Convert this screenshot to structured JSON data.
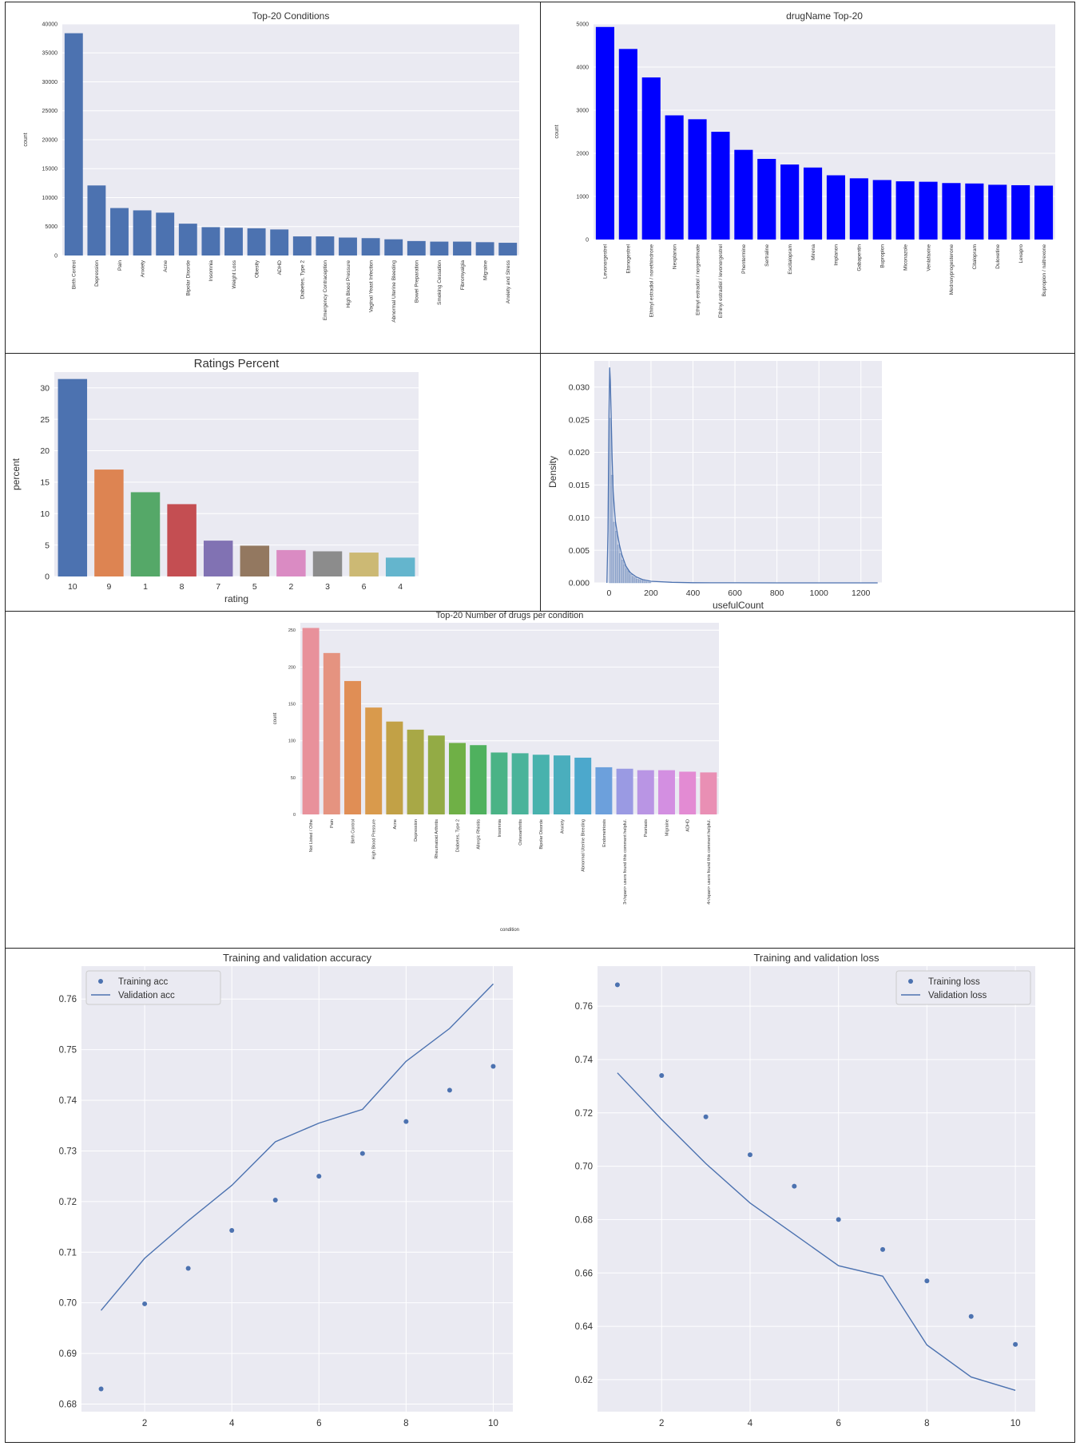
{
  "style": {
    "panel_bg": "#eaeaf2",
    "grid": "#ffffff",
    "text": "#333333"
  },
  "chart_data": [
    {
      "id": "top20_conditions",
      "type": "bar",
      "title": "Top-20 Conditions",
      "xlabel": "",
      "ylabel": "count",
      "ylim": [
        0,
        40000
      ],
      "yticks": [
        0,
        5000,
        10000,
        15000,
        20000,
        25000,
        30000,
        35000,
        40000
      ],
      "color": "#4c72b0",
      "categories": [
        "Birth Control",
        "Depression",
        "Pain",
        "Anxiety",
        "Acne",
        "Bipolar Disorde",
        "Insomnia",
        "Weight Loss",
        "Obesity",
        "ADHD",
        "Diabetes, Type 2",
        "Emergency Contraception",
        "High Blood Pressure",
        "Vaginal Yeast Infection",
        "Abnormal Uterine Bleeding",
        "Bowel Preparation",
        "Smoking Cessation",
        "Fibromyalgia",
        "Migraine",
        "Anxiety and Stress"
      ],
      "values": [
        38400,
        12100,
        8200,
        7800,
        7400,
        5500,
        4900,
        4800,
        4700,
        4500,
        3300,
        3300,
        3100,
        3000,
        2800,
        2500,
        2400,
        2400,
        2300,
        2200
      ]
    },
    {
      "id": "drugname_top20",
      "type": "bar",
      "title": "drugName Top-20",
      "xlabel": "",
      "ylabel": "count",
      "ylim": [
        0,
        5000
      ],
      "yticks": [
        0,
        1000,
        2000,
        3000,
        4000,
        5000
      ],
      "color": "#0000ff",
      "categories": [
        "Levonorgestrel",
        "Etonogestrel",
        "Ethinyl estradiol / norethindrone",
        "Nexplanon",
        "Ethinyl estradiol / norgestimate",
        "Ethinyl estradiol / levonorgestrel",
        "Phentermine",
        "Sertraline",
        "Escitalopram",
        "Mirena",
        "Implanon",
        "Gabapentin",
        "Bupropion",
        "Miconazole",
        "Venlafaxine",
        "Medroxyprogesterone",
        "Citalopram",
        "Duloxetine",
        "Lexapro",
        "Bupropion / naltrexone"
      ],
      "values": [
        4930,
        4420,
        3760,
        2880,
        2790,
        2500,
        2080,
        1870,
        1740,
        1670,
        1490,
        1420,
        1380,
        1350,
        1340,
        1310,
        1300,
        1270,
        1260,
        1250
      ]
    },
    {
      "id": "ratings_percent",
      "type": "bar",
      "title": "Ratings Percent",
      "xlabel": "rating",
      "ylabel": "percent",
      "ylim": [
        0,
        32.5
      ],
      "yticks": [
        0,
        5,
        10,
        15,
        20,
        25,
        30
      ],
      "categories": [
        "10",
        "9",
        "1",
        "8",
        "7",
        "5",
        "2",
        "3",
        "6",
        "4"
      ],
      "values": [
        31.4,
        17.0,
        13.4,
        11.5,
        5.7,
        4.9,
        4.2,
        4.0,
        3.8,
        3.0
      ],
      "colors": [
        "#4c72b0",
        "#dd8452",
        "#55a868",
        "#c44e52",
        "#8172b3",
        "#937860",
        "#da8bc3",
        "#8c8c8c",
        "#ccb974",
        "#64b5cd"
      ]
    },
    {
      "id": "usefulcount_density",
      "type": "area",
      "title": "",
      "xlabel": "usefulCount",
      "ylabel": "Density",
      "xlim": [
        -70,
        1300
      ],
      "ylim": [
        0,
        0.034
      ],
      "xticks": [
        0,
        200,
        400,
        600,
        800,
        1000,
        1200
      ],
      "yticks": [
        0.0,
        0.005,
        0.01,
        0.015,
        0.02,
        0.025,
        0.03
      ],
      "ytick_labels": [
        "0.000",
        "0.005",
        "0.010",
        "0.015",
        "0.020",
        "0.025",
        "0.030"
      ],
      "kde_x": [
        -10,
        -5,
        0,
        3,
        6,
        10,
        15,
        20,
        30,
        40,
        50,
        60,
        80,
        100,
        130,
        160,
        200,
        300,
        400,
        600,
        800,
        1000,
        1200,
        1280
      ],
      "kde_y": [
        0.0,
        0.008,
        0.026,
        0.033,
        0.031,
        0.026,
        0.019,
        0.014,
        0.0095,
        0.0075,
        0.0058,
        0.0044,
        0.0026,
        0.0016,
        0.0009,
        0.0005,
        0.00025,
        8e-05,
        3e-05,
        1e-05,
        0.0,
        0.0,
        0.0,
        0.0
      ],
      "hist_bin_width": 10,
      "hist_values": [
        0.0252,
        0.0165,
        0.0093,
        0.0079,
        0.0058,
        0.0045,
        0.0035,
        0.0028,
        0.0022,
        0.0018,
        0.0013,
        0.001,
        0.0008,
        0.0006,
        0.0005,
        0.0004,
        0.0003,
        0.0002,
        0.00015,
        0.0001
      ]
    },
    {
      "id": "drugs_per_condition",
      "type": "bar",
      "title": "Top-20 Number of drugs per condition",
      "xlabel": "condition",
      "ylabel": "count",
      "ylim": [
        0,
        260
      ],
      "yticks": [
        0,
        50,
        100,
        150,
        200,
        250
      ],
      "categories": [
        "Not Listed / Othe",
        "Pain",
        "Birth Control",
        "High Blood Pressure",
        "Acne",
        "Depression",
        "Rheumatoid Arthritis",
        "Diabetes, Type 2",
        "Allergic Rhinitis",
        "Insomnia",
        "Osteoarthritis",
        "Bipolar Disorde",
        "Anxiety",
        "Abnormal Uterine Bleeding",
        "Endometriosis",
        "3</span> users found this comment helpful.",
        "Psoriasis",
        "Migraine",
        "ADHD",
        "4</span> users found this comment helpful."
      ],
      "values": [
        253,
        219,
        181,
        145,
        126,
        115,
        107,
        97,
        94,
        84,
        83,
        81,
        80,
        77,
        64,
        62,
        60,
        60,
        58,
        57
      ],
      "colors": [
        "#e8919b",
        "#e59380",
        "#e08e55",
        "#d99a4c",
        "#c2a146",
        "#a8a846",
        "#93ab45",
        "#6fb046",
        "#4fb15e",
        "#4ab386",
        "#4ab39a",
        "#48b2ad",
        "#4aaebd",
        "#4ca8cc",
        "#6ca0dc",
        "#9a9ae3",
        "#b995e4",
        "#d38fe1",
        "#e38bd3",
        "#e98fb4"
      ]
    },
    {
      "id": "training_validation_accuracy",
      "type": "line",
      "title": "Training and validation accuracy",
      "xlabel": "",
      "ylabel": "",
      "xlim": [
        0.55,
        10.45
      ],
      "ylim": [
        0.6785,
        0.7665
      ],
      "xticks": [
        2,
        4,
        6,
        8,
        10
      ],
      "yticks": [
        0.68,
        0.69,
        0.7,
        0.71,
        0.72,
        0.73,
        0.74,
        0.75,
        0.76
      ],
      "ytick_labels": [
        "0.68",
        "0.69",
        "0.70",
        "0.71",
        "0.72",
        "0.73",
        "0.74",
        "0.75",
        "0.76"
      ],
      "legend": "top-left",
      "x": [
        1,
        2,
        3,
        4,
        5,
        6,
        7,
        8,
        9,
        10
      ],
      "series": [
        {
          "name": "Training acc",
          "style": "points",
          "values": [
            0.683,
            0.6998,
            0.7068,
            0.7143,
            0.7203,
            0.725,
            0.7295,
            0.7358,
            0.742,
            0.7467
          ]
        },
        {
          "name": "Validation acc",
          "style": "line",
          "values": [
            0.6985,
            0.7088,
            0.7162,
            0.7232,
            0.7318,
            0.7355,
            0.7382,
            0.7477,
            0.7542,
            0.763
          ]
        }
      ]
    },
    {
      "id": "training_validation_loss",
      "type": "line",
      "title": "Training and validation loss",
      "xlabel": "",
      "ylabel": "",
      "xlim": [
        0.55,
        10.45
      ],
      "ylim": [
        0.608,
        0.775
      ],
      "xticks": [
        2,
        4,
        6,
        8,
        10
      ],
      "yticks": [
        0.62,
        0.64,
        0.66,
        0.68,
        0.7,
        0.72,
        0.74,
        0.76
      ],
      "ytick_labels": [
        "0.62",
        "0.64",
        "0.66",
        "0.68",
        "0.70",
        "0.72",
        "0.74",
        "0.76"
      ],
      "legend": "top-right",
      "x": [
        1,
        2,
        3,
        4,
        5,
        6,
        7,
        8,
        9,
        10
      ],
      "series": [
        {
          "name": "Training loss",
          "style": "points",
          "values": [
            0.768,
            0.734,
            0.7185,
            0.7043,
            0.6925,
            0.68,
            0.6688,
            0.657,
            0.6437,
            0.6332
          ]
        },
        {
          "name": "Validation loss",
          "style": "line",
          "values": [
            0.735,
            0.7175,
            0.701,
            0.6862,
            0.6745,
            0.6627,
            0.6588,
            0.633,
            0.621,
            0.616
          ]
        }
      ]
    }
  ]
}
